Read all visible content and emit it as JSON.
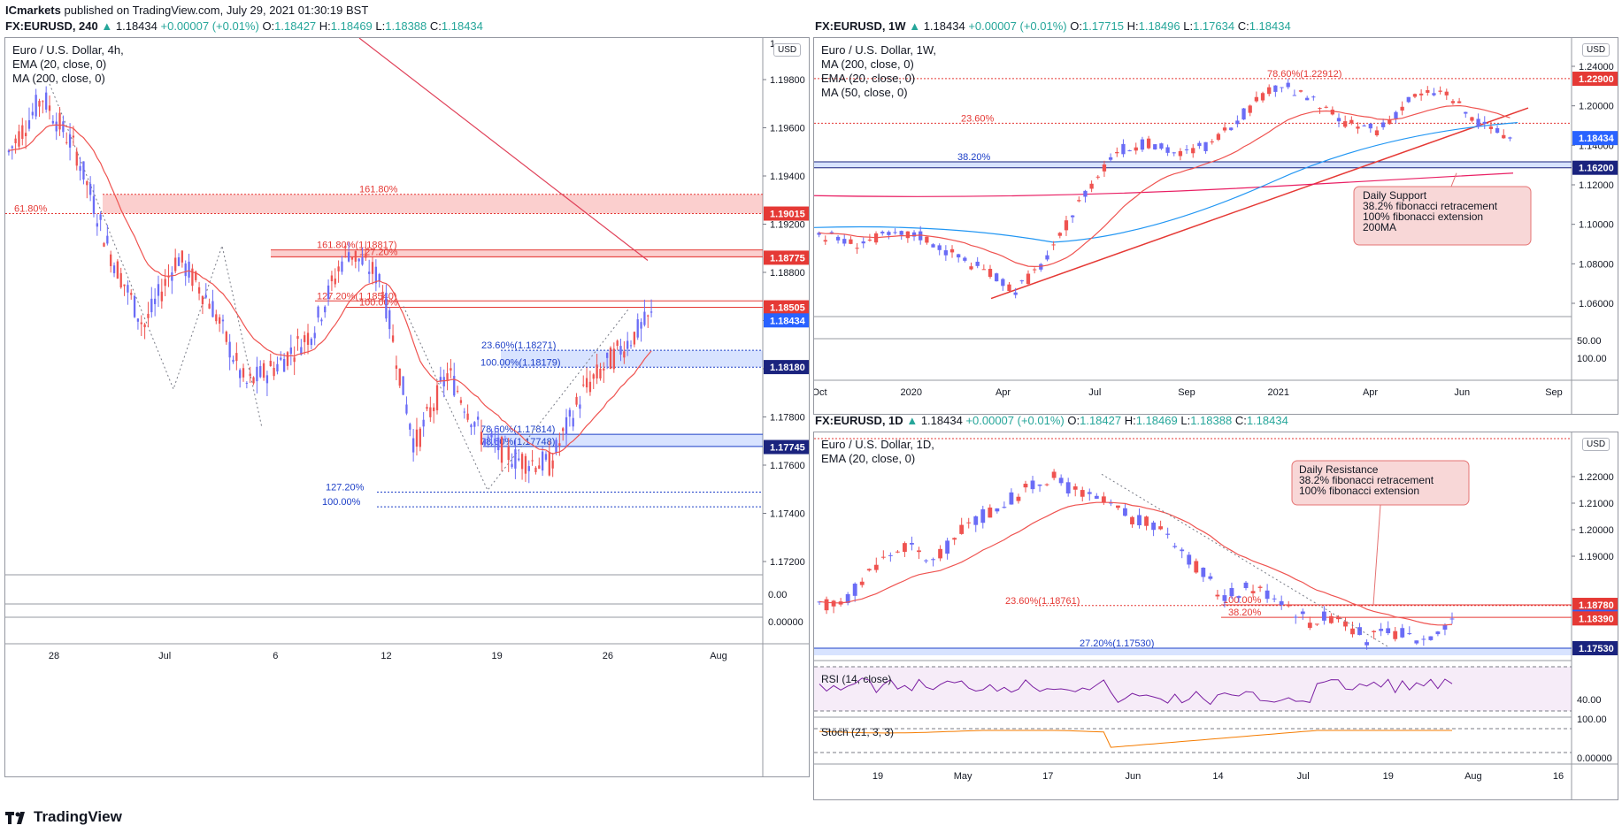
{
  "header": {
    "publisher": "ICmarkets",
    "published_text": "published on TradingView.com, July 29, 2021 01:30:19 BST"
  },
  "footer": {
    "brand": "TradingView"
  },
  "charts": {
    "h4": {
      "symbol": "FX:EURUSD, 240",
      "ohlc": {
        "price": "1.18434",
        "change": "+0.00007 (+0.01%)",
        "o": "1.18427",
        "h": "1.18469",
        "l": "1.18388",
        "c": "1.18434"
      },
      "legend": [
        "Euro / U.S. Dollar, 4h,",
        "EMA (20, close, 0)",
        "MA (200, close, 0)"
      ],
      "currency": "USD"
    },
    "w1": {
      "symbol": "FX:EURUSD, 1W",
      "ohlc": {
        "price": "1.18434",
        "change": "+0.00007 (+0.01%)",
        "o": "1.17715",
        "h": "1.18496",
        "l": "1.17634",
        "c": "1.18434"
      },
      "legend": [
        "Euro / U.S. Dollar, 1W,",
        "MA (200, close, 0)",
        "EMA (20, close, 0)",
        "MA (50, close, 0)"
      ],
      "currency": "USD"
    },
    "d1": {
      "symbol": "FX:EURUSD, 1D",
      "ohlc": {
        "price": "1.18434",
        "change": "+0.00007 (+0.01%)",
        "o": "1.18427",
        "h": "1.18469",
        "l": "1.18388",
        "c": "1.18434"
      },
      "legend": [
        "Euro / U.S. Dollar, 1D,",
        "EMA (20, close, 0)"
      ],
      "rsi_label": "RSI (14, close)",
      "stoch_label": "Stoch (21, 3, 3)",
      "currency": "USD"
    }
  },
  "chart_data": [
    {
      "type": "candlestick",
      "id": "h4",
      "colors": {
        "up": "#6a6cf6",
        "down": "#ef5350",
        "ema": "#ef5350",
        "ma200": "#e0425a"
      },
      "y_ticks": [
        "1.19800",
        "1.19600",
        "1.19400",
        "1.19200",
        "1.18800",
        "1.18600",
        "1.18000",
        "1.17800",
        "1.17600",
        "1.17400",
        "1.17200"
      ],
      "y_top_tick": "1",
      "sub_ticks": [
        "0.00",
        "0.00000"
      ],
      "x_ticks": [
        "28",
        "Jul",
        "6",
        "12",
        "19",
        "26",
        "Aug"
      ],
      "ylim": [
        1.1705,
        1.1997
      ],
      "price_tags": [
        {
          "value": 1.19015,
          "label": "1.19015",
          "color": "#e53935"
        },
        {
          "value": 1.18775,
          "label": "1.18775",
          "color": "#e53935"
        },
        {
          "value": 1.18505,
          "label": "1.18505",
          "color": "#e53935"
        },
        {
          "value": 1.18434,
          "label": "1.18434",
          "color": "#2962ff"
        },
        {
          "value": 1.1818,
          "label": "1.18180",
          "color": "#1a237e"
        },
        {
          "value": 1.17745,
          "label": "1.17745",
          "color": "#1a237e"
        }
      ],
      "levels": [
        {
          "label": "161.80%",
          "value": 1.1912,
          "color": "#e53935"
        },
        {
          "label": "61.80%",
          "value": 1.19015,
          "color": "#e53935"
        },
        {
          "label": "161.80%(1.18817)",
          "value": 1.18817,
          "color": "#e53935"
        },
        {
          "label": "127.20%",
          "value": 1.1878,
          "color": "#e53935"
        },
        {
          "label": "127.20%(1.18540)",
          "value": 1.1854,
          "color": "#e53935"
        },
        {
          "label": "100.00%",
          "value": 1.18505,
          "color": "#e53935"
        },
        {
          "label": "23.60%(1.18271)",
          "value": 1.18271,
          "color": "#1e40c8"
        },
        {
          "label": "100.00%(1.18179)",
          "value": 1.18179,
          "color": "#1e40c8"
        },
        {
          "label": "78.60%(1.17814)",
          "value": 1.17814,
          "color": "#1e40c8"
        },
        {
          "label": "78.60%(1.17748)",
          "value": 1.17748,
          "color": "#1e40c8"
        },
        {
          "label": "127.20%",
          "value": 1.175,
          "color": "#1e40c8"
        },
        {
          "label": "100.00%",
          "value": 1.1742,
          "color": "#1e40c8"
        }
      ]
    },
    {
      "type": "candlestick",
      "id": "w1",
      "colors": {
        "up": "#6a6cf6",
        "down": "#ef5350",
        "ma200": "#e91e63",
        "ema20": "#ef5350",
        "ma50": "#2196f3"
      },
      "y_ticks": [
        "1.24000",
        "1.20000",
        "1.14000",
        "1.12000",
        "1.10000",
        "1.08000",
        "1.06000"
      ],
      "sub_ticks": [
        "50.00",
        "100.00"
      ],
      "x_ticks": [
        "Oct",
        "2020",
        "Apr",
        "Jul",
        "Sep",
        "2021",
        "Apr",
        "Jun",
        "Sep"
      ],
      "ylim": [
        1.05,
        1.245
      ],
      "price_tags": [
        {
          "value": 1.229,
          "label": "1.22900",
          "color": "#e53935"
        },
        {
          "value": 1.18434,
          "label": "1.18434",
          "color": "#2962ff"
        },
        {
          "value": 1.162,
          "label": "1.16200",
          "color": "#1a237e"
        }
      ],
      "levels": [
        {
          "label": "78.60%(1.22912)",
          "value": 1.22912,
          "color": "#e53935"
        },
        {
          "label": "23.60%",
          "value": 1.1955,
          "color": "#e53935"
        },
        {
          "label": "38.20%",
          "value": 1.1665,
          "color": "#1e40c8"
        }
      ],
      "annotation": [
        "Daily Support",
        "38.2% fibonacci retracement",
        "100% fibonacci extension",
        "200MA"
      ]
    },
    {
      "type": "candlestick",
      "id": "d1",
      "colors": {
        "up": "#6a6cf6",
        "down": "#ef5350",
        "ema": "#ef5350",
        "rsi": "#7b1fa2",
        "stoch": "#f57c00"
      },
      "y_ticks": [
        "1.22000",
        "1.21000",
        "1.20000",
        "1.19000"
      ],
      "sub_ticks": [
        "40.00",
        "100.00",
        "0.00000"
      ],
      "x_ticks": [
        "19",
        "May",
        "17",
        "Jun",
        "14",
        "Jul",
        "19",
        "Aug",
        "16"
      ],
      "ylim": [
        1.1725,
        1.2345
      ],
      "price_tags": [
        {
          "value": 1.1878,
          "label": "1.18780",
          "color": "#e53935"
        },
        {
          "value": 1.18434,
          "label": "1.18434",
          "color": "#2962ff"
        },
        {
          "value": 1.1839,
          "label": "1.18390",
          "color": "#e53935"
        },
        {
          "value": 1.1753,
          "label": "1.17530",
          "color": "#1a237e"
        }
      ],
      "levels": [
        {
          "label": "23.60%(1.18761)",
          "value": 1.18761,
          "color": "#e53935"
        },
        {
          "label": "100.00%",
          "value": 1.1878,
          "color": "#e53935"
        },
        {
          "label": "38.20%",
          "value": 1.1842,
          "color": "#e53935"
        },
        {
          "label": "27.20%(1.17530)",
          "value": 1.1753,
          "color": "#1e40c8"
        }
      ],
      "annotation": [
        "Daily Resistance",
        "38.2% fibonacci retracement",
        "100% fibonacci extension"
      ]
    }
  ]
}
